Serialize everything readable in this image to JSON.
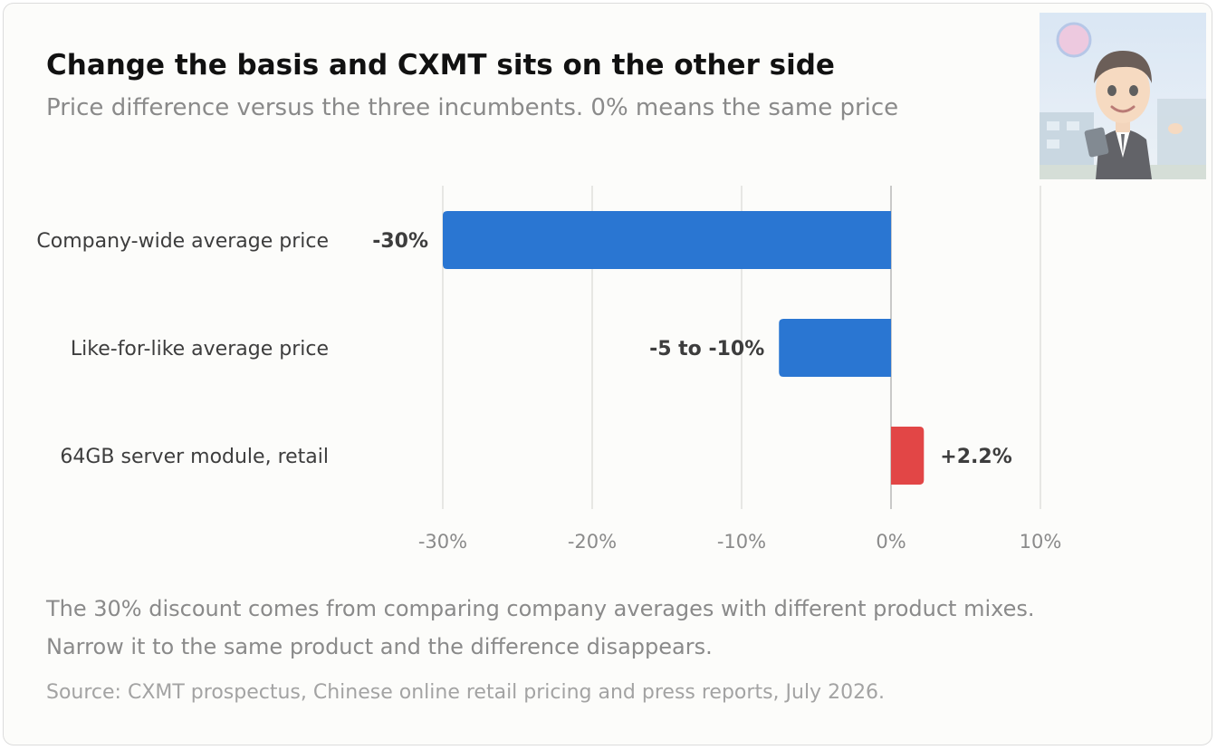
{
  "header": {
    "title": "Change the basis and CXMT sits on the other side",
    "subtitle": "Price difference versus the three incumbents. 0% means the same price"
  },
  "chart_data": {
    "type": "bar",
    "orientation": "horizontal",
    "title": "Change the basis and CXMT sits on the other side",
    "subtitle": "Price difference versus the three incumbents. 0% means the same price",
    "categories": [
      "Company-wide average price",
      "Like-for-like average price",
      "64GB server module, retail"
    ],
    "values": [
      -30,
      -7.5,
      2.2
    ],
    "value_labels": [
      "-30%",
      "-5 to -10%",
      "+2.2%"
    ],
    "colors": [
      "#2a76d2",
      "#2a76d2",
      "#e24646"
    ],
    "xlim": [
      -30,
      10
    ],
    "xticks": [
      -30,
      -20,
      -10,
      0,
      10
    ],
    "xtick_labels": [
      "-30%",
      "-20%",
      "-10%",
      "0%",
      "10%"
    ],
    "grid": true,
    "legend": "none"
  },
  "footer": {
    "note_lines": [
      "The 30% discount comes from comparing company averages with different product mixes.",
      "Narrow it to the same product and the difference disappears."
    ],
    "source": "Source: CXMT prospectus, Chinese online retail pricing and press reports, July 2026."
  },
  "icons": {
    "avatar": "presenter-avatar-illustration"
  },
  "theme": {
    "card_background": "#fcfcfa",
    "gridline": "#d9d9d4",
    "zero_line": "#b8b8b8",
    "negative_bar": "#2a76d2",
    "positive_bar": "#e24646"
  }
}
